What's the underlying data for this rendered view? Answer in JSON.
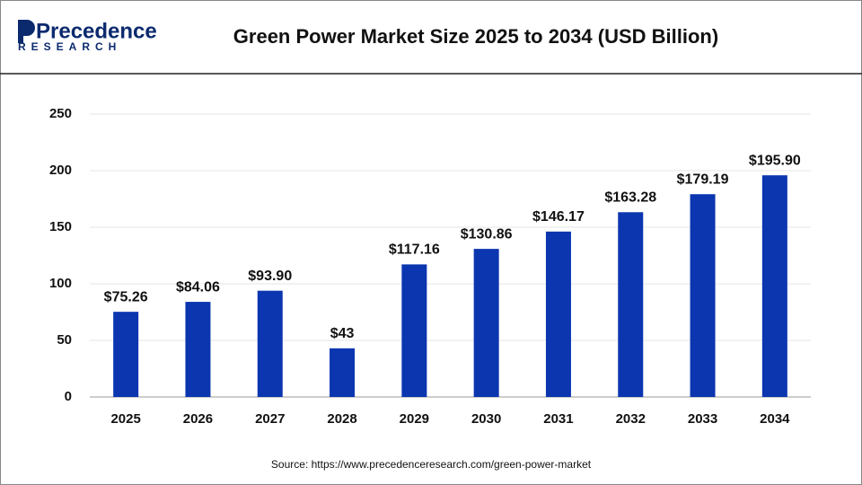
{
  "chart_data": {
    "type": "bar",
    "brand": "Precedence",
    "brand_sub": "RESEARCH",
    "title": "Green Power Market Size 2025 to 2034 (USD Billion)",
    "source": "Source: https://www.precedenceresearch.com/green-power-market",
    "categories": [
      "2025",
      "2026",
      "2027",
      "2028",
      "2029",
      "2030",
      "2031",
      "2032",
      "2033",
      "2034"
    ],
    "values": [
      75.26,
      84.06,
      93.9,
      43,
      117.16,
      130.86,
      146.17,
      163.28,
      179.19,
      195.9
    ],
    "value_labels": [
      "$75.26",
      "$84.06",
      "$93.90",
      "$43",
      "$117.16",
      "$130.86",
      "$146.17",
      "$163.28",
      "$179.19",
      "$195.90"
    ],
    "color": "#0b36b0",
    "ylim": [
      0,
      250
    ],
    "yticks": [
      0,
      50,
      100,
      150,
      200,
      250
    ],
    "grid": true
  }
}
